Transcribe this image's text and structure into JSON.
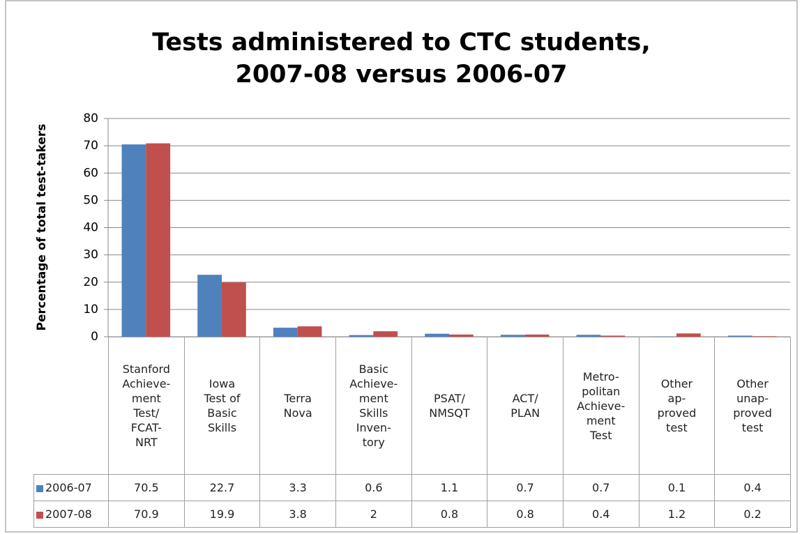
{
  "chart_data": {
    "type": "bar",
    "title": "Tests administered to CTC students,\n2007-08 versus 2006-07",
    "y_label": "Percentage of total test-takers",
    "categories": [
      "Stanford\nAchieve-\nment\nTest/\nFCAT-\nNRT",
      "Iowa\nTest of\nBasic\nSkills",
      "Terra\nNova",
      "Basic\nAchieve-\nment\nSkills\nInven-\ntory",
      "PSAT/\nNMSQT",
      "ACT/\nPLAN",
      "Metro-\npolitan\nAchieve-\nment\nTest",
      "Other\nap-\nproved\ntest",
      "Other\nunap-\nproved\ntest"
    ],
    "series": [
      {
        "name": "2006-07",
        "color": "#4f81bd",
        "values": [
          70.5,
          22.7,
          3.3,
          0.6,
          1.1,
          0.7,
          0.7,
          0.1,
          0.4
        ]
      },
      {
        "name": "2007-08",
        "color": "#c0504d",
        "values": [
          70.9,
          19.9,
          3.8,
          2,
          0.8,
          0.8,
          0.4,
          1.2,
          0.2
        ]
      }
    ],
    "ylim": [
      0,
      80
    ],
    "yticks": [
      0,
      10,
      20,
      30,
      40,
      50,
      60,
      70,
      80
    ],
    "grid": true,
    "data_table": true
  }
}
